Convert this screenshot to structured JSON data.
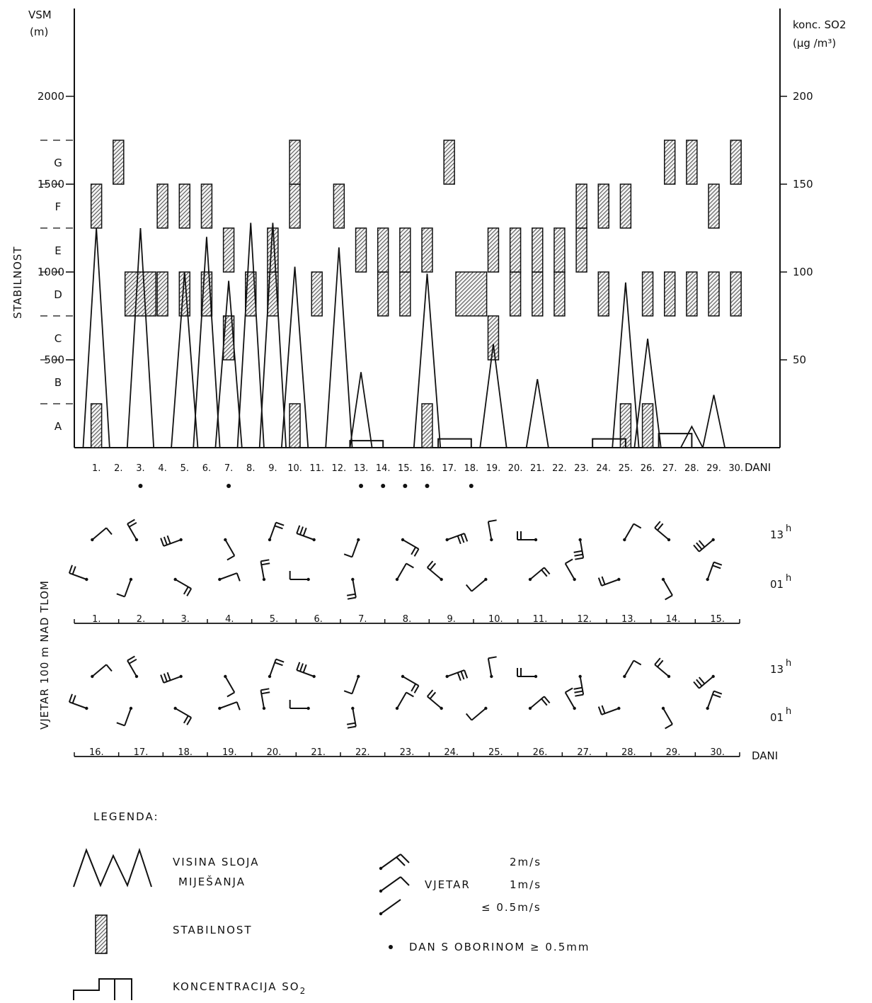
{
  "chart_data": {
    "type": "bar",
    "left_axis": {
      "title_line1": "VSM",
      "title_line2": "(m)",
      "side_label": "STABILNOST",
      "range": [
        0,
        2500
      ],
      "ticks": [
        {
          "value": 500,
          "label": "500"
        },
        {
          "value": 1000,
          "label": "1000"
        },
        {
          "value": 1500,
          "label": "1500"
        },
        {
          "value": 2000,
          "label": "2000"
        }
      ]
    },
    "right_axis": {
      "title_line1": "konc. SO2",
      "title_line2": "(µg /m³)",
      "range": [
        0,
        250
      ],
      "ticks": [
        {
          "value": 50,
          "label": "50"
        },
        {
          "value": 100,
          "label": "100"
        },
        {
          "value": 150,
          "label": "150"
        },
        {
          "value": 200,
          "label": "200"
        }
      ]
    },
    "stability_classes": [
      {
        "label": "A",
        "from": 0,
        "to": 250
      },
      {
        "label": "B",
        "from": 250,
        "to": 500
      },
      {
        "label": "C",
        "from": 500,
        "to": 750
      },
      {
        "label": "D",
        "from": 750,
        "to": 1000
      },
      {
        "label": "E",
        "from": 1000,
        "to": 1250
      },
      {
        "label": "F",
        "from": 1250,
        "to": 1500
      },
      {
        "label": "G",
        "from": 1500,
        "to": 1750
      }
    ],
    "days": [
      "1.",
      "2.",
      "3.",
      "4.",
      "5.",
      "6.",
      "7.",
      "8.",
      "9.",
      "10.",
      "11.",
      "12.",
      "13.",
      "14.",
      "15.",
      "16.",
      "17.",
      "18.",
      "19.",
      "20.",
      "21.",
      "22.",
      "23.",
      "24.",
      "25.",
      "26.",
      "27.",
      "28.",
      "29.",
      "30."
    ],
    "days_axis_label": "DANI",
    "mixing_height_m": [
      {
        "day": 1,
        "h": 1250
      },
      {
        "day": 3,
        "h": 1250
      },
      {
        "day": 5,
        "h": 1000
      },
      {
        "day": 6,
        "h": 1200
      },
      {
        "day": 7,
        "h": 950
      },
      {
        "day": 8,
        "h": 1280
      },
      {
        "day": 9,
        "h": 1280
      },
      {
        "day": 10,
        "h": 1030
      },
      {
        "day": 12,
        "h": 1140
      },
      {
        "day": 13,
        "h": 430
      },
      {
        "day": 16,
        "h": 990
      },
      {
        "day": 19,
        "h": 590
      },
      {
        "day": 21,
        "h": 390
      },
      {
        "day": 25,
        "h": 940
      },
      {
        "day": 26,
        "h": 620
      },
      {
        "day": 28,
        "h": 120
      },
      {
        "day": 29,
        "h": 300
      }
    ],
    "stability": [
      {
        "day": 1,
        "classes": [
          "A",
          "F"
        ]
      },
      {
        "day": 2,
        "classes": [
          "G"
        ]
      },
      {
        "day": 3,
        "classes": [
          "D"
        ]
      },
      {
        "day": 4,
        "classes": [
          "D",
          "F"
        ]
      },
      {
        "day": 5,
        "classes": [
          "D",
          "F"
        ]
      },
      {
        "day": 6,
        "classes": [
          "D",
          "F"
        ]
      },
      {
        "day": 7,
        "classes": [
          "C",
          "E"
        ]
      },
      {
        "day": 8,
        "classes": [
          "D"
        ]
      },
      {
        "day": 9,
        "classes": [
          "D",
          "E"
        ]
      },
      {
        "day": 10,
        "classes": [
          "A",
          "F",
          "G"
        ]
      },
      {
        "day": 11,
        "classes": [
          "D"
        ]
      },
      {
        "day": 12,
        "classes": [
          "F"
        ]
      },
      {
        "day": 13,
        "classes": [
          "E"
        ]
      },
      {
        "day": 14,
        "classes": [
          "D",
          "E"
        ]
      },
      {
        "day": 15,
        "classes": [
          "D",
          "E"
        ]
      },
      {
        "day": 16,
        "classes": [
          "A",
          "E"
        ]
      },
      {
        "day": 17,
        "classes": [
          "G"
        ]
      },
      {
        "day": 18,
        "classes": [
          "D"
        ]
      },
      {
        "day": 19,
        "classes": [
          "C",
          "E"
        ]
      },
      {
        "day": 20,
        "classes": [
          "D",
          "E"
        ]
      },
      {
        "day": 21,
        "classes": [
          "D",
          "E"
        ]
      },
      {
        "day": 22,
        "classes": [
          "D",
          "E"
        ]
      },
      {
        "day": 23,
        "classes": [
          "E",
          "F"
        ]
      },
      {
        "day": 24,
        "classes": [
          "D",
          "F"
        ]
      },
      {
        "day": 25,
        "classes": [
          "A",
          "F"
        ]
      },
      {
        "day": 26,
        "classes": [
          "A",
          "D"
        ]
      },
      {
        "day": 27,
        "classes": [
          "D",
          "G"
        ]
      },
      {
        "day": 28,
        "classes": [
          "D",
          "G"
        ]
      },
      {
        "day": 29,
        "classes": [
          "D",
          "F"
        ]
      },
      {
        "day": 30,
        "classes": [
          "D",
          "G"
        ]
      }
    ],
    "so2_concentration_ug_m3": [
      {
        "from_day": 13,
        "to_day": 13.8,
        "value": 4
      },
      {
        "from_day": 17,
        "to_day": 17.8,
        "value": 5
      },
      {
        "from_day": 24,
        "to_day": 24.8,
        "value": 5
      },
      {
        "from_day": 27,
        "to_day": 27.8,
        "value": 8
      }
    ],
    "precipitation_days": [
      3,
      7,
      13,
      14,
      15,
      16,
      18
    ],
    "wind_panel": {
      "axis_label": "VJETAR 100 m NAD TLOM",
      "hour_13_label": "13",
      "hour_01_label": "01",
      "hour_suffix": "h",
      "days_axis_label": "DANI",
      "row1_days": [
        "1.",
        "2.",
        "3.",
        "4.",
        "5.",
        "6.",
        "7.",
        "8.",
        "9.",
        "10.",
        "11.",
        "12.",
        "13.",
        "14.",
        "15."
      ],
      "row2_days": [
        "16.",
        "17.",
        "18.",
        "19.",
        "20.",
        "21.",
        "22.",
        "23.",
        "24.",
        "25.",
        "26.",
        "27.",
        "28.",
        "29.",
        "30."
      ]
    },
    "legend": {
      "title": "LEGENDA:",
      "mixing_line1": "VISINA SLOJA",
      "mixing_line2": "MIJEŠANJA",
      "stability": "STABILNOST",
      "so2_prefix": "KONCENTRACIJA SO",
      "so2_sub": "2",
      "wind_label": "VJETAR",
      "wind_2": "2m/s",
      "wind_1": "1m/s",
      "wind_05": "≤ 0.5m/s",
      "precip": "DAN S OBORINOM  ≥ 0.5mm"
    }
  }
}
